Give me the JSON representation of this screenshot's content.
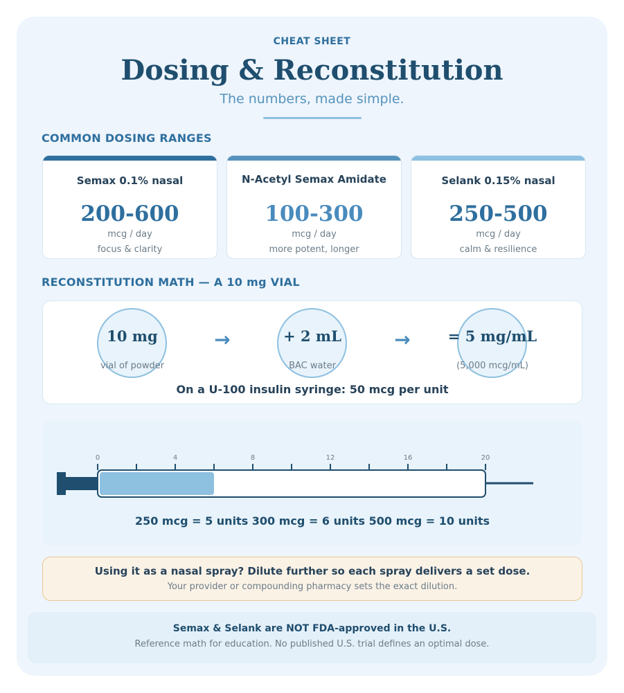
{
  "header": {
    "eyebrow": "CHEAT SHEET",
    "title": "Dosing & Reconstitution",
    "subtitle": "The numbers, made simple."
  },
  "dosing": {
    "heading": "COMMON DOSING RANGES",
    "cards": [
      {
        "name": "Semax 0.1% nasal",
        "range": "200-600",
        "unit": "mcg / day",
        "note": "focus & clarity",
        "accent": "#2e6f9e",
        "range_color": "#2e6f9e"
      },
      {
        "name": "N-Acetyl Semax Amidate",
        "range": "100-300",
        "unit": "mcg / day",
        "note": "more potent, longer",
        "accent": "#5593bd",
        "range_color": "#4a8bbd"
      },
      {
        "name": "Selank 0.15% nasal",
        "range": "250-500",
        "unit": "mcg / day",
        "note": "calm & resilience",
        "accent": "#8ec0e0",
        "range_color": "#2e6f9e"
      }
    ]
  },
  "reconstitution": {
    "heading": "RECONSTITUTION MATH — A 10 mg VIAL",
    "steps": [
      {
        "value": "10 mg",
        "label": "vial of powder"
      },
      {
        "value": "+ 2 mL",
        "label": "BAC water"
      },
      {
        "value": "= 5 mg/mL",
        "label": "(5,000 mcg/mL)"
      }
    ],
    "arrow": "→",
    "note": "On a U-100 insulin syringe: 50 mcg per unit"
  },
  "syringe": {
    "tick_labels": [
      "0",
      "4",
      "8",
      "12",
      "16",
      "20"
    ],
    "max_units": 20,
    "fill_units": 6,
    "fill_color": "#8ec0e0",
    "barrel_color": "#1f4e6e",
    "dose_line": "250 mcg = 5 units 300 mcg = 6 units 500 mcg = 10 units"
  },
  "warning": {
    "title": "Using it as a nasal spray? Dilute further so each spray delivers a set dose.",
    "subtitle": "Your provider or compounding pharmacy sets the exact dilution."
  },
  "footer": {
    "title": "Semax & Selank are NOT FDA-approved in the U.S.",
    "subtitle": "Reference math for education. No published U.S. trial defines an optimal dose."
  }
}
